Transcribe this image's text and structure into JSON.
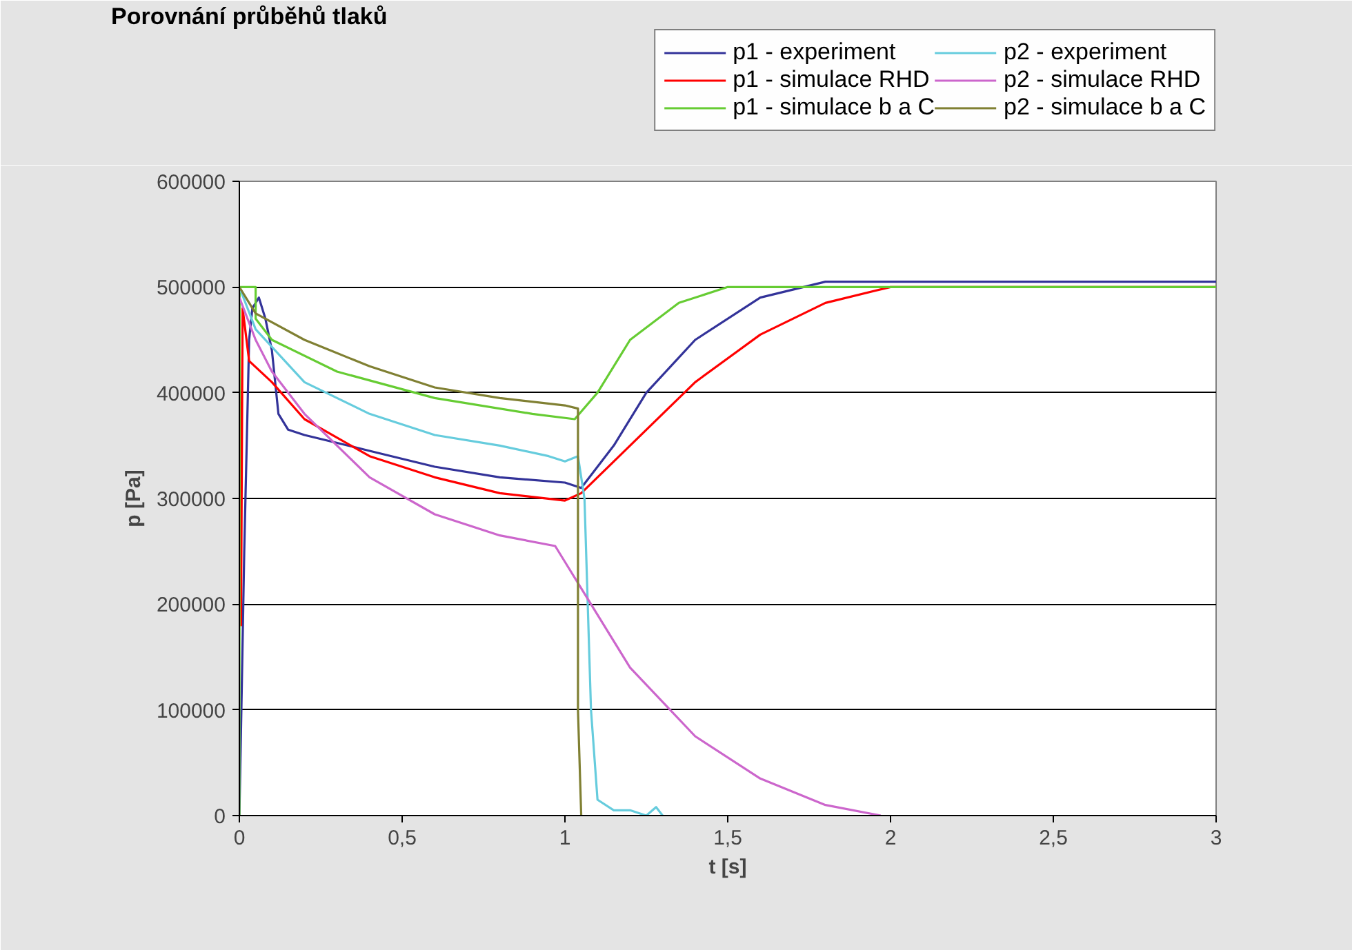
{
  "chart_data": {
    "type": "line",
    "title": "Porovnání průběhů tlaků",
    "xlabel": "t [s]",
    "ylabel": "p [Pa]",
    "xlim": [
      0,
      3
    ],
    "xticks": [
      0,
      {
        "value": 0.5,
        "label": "0,5"
      },
      1,
      {
        "value": 1.5,
        "label": "1,5"
      },
      2,
      {
        "value": 2.5,
        "label": "2,5"
      },
      3
    ],
    "ylim": [
      0,
      600000
    ],
    "yticks": [
      0,
      100000,
      200000,
      300000,
      400000,
      500000,
      600000
    ],
    "grid": "y",
    "legend": "top right",
    "marker": "none",
    "line_style": "solid",
    "series": [
      {
        "name": "p1 - experiment",
        "color": "#333399",
        "x": [
          0,
          0.005,
          0.015,
          0.03,
          0.04,
          0.06,
          0.08,
          0.1,
          0.12,
          0.15,
          0.2,
          0.4,
          0.6,
          0.8,
          1.0,
          1.05,
          1.15,
          1.25,
          1.4,
          1.6,
          1.8,
          2.2,
          3
        ],
        "values": [
          0,
          80000,
          250000,
          450000,
          480000,
          490000,
          470000,
          440000,
          380000,
          365000,
          360000,
          345000,
          330000,
          320000,
          315000,
          310000,
          350000,
          400000,
          450000,
          490000,
          505000,
          505000,
          505000
        ]
      },
      {
        "name": "p1 - simulace RHD",
        "color": "#ff0000",
        "x": [
          0,
          0.005,
          0.01,
          0.03,
          0.1,
          0.2,
          0.4,
          0.6,
          0.8,
          1.0,
          1.05,
          1.2,
          1.4,
          1.6,
          1.8,
          2.0,
          3
        ],
        "values": [
          500000,
          180000,
          480000,
          430000,
          410000,
          375000,
          340000,
          320000,
          305000,
          298000,
          305000,
          350000,
          410000,
          455000,
          485000,
          500000,
          500000
        ]
      },
      {
        "name": "p1 - simulace b a C",
        "color": "#66cc33",
        "x": [
          0,
          0.001,
          0.05,
          0.05,
          0.1,
          0.3,
          0.6,
          0.9,
          1.03,
          1.1,
          1.2,
          1.35,
          1.5,
          3
        ],
        "values": [
          0,
          500000,
          500000,
          470000,
          450000,
          420000,
          395000,
          380000,
          375000,
          400000,
          450000,
          485000,
          500000,
          500000
        ]
      },
      {
        "name": "p2 - experiment",
        "color": "#66ccdd",
        "x": [
          0,
          0.05,
          0.2,
          0.4,
          0.6,
          0.8,
          0.95,
          1.0,
          1.04,
          1.06,
          1.08,
          1.1,
          1.15,
          1.2,
          1.25,
          1.28,
          1.3
        ],
        "values": [
          500000,
          460000,
          410000,
          380000,
          360000,
          350000,
          340000,
          335000,
          340000,
          300000,
          100000,
          15000,
          5000,
          5000,
          0,
          8000,
          0
        ]
      },
      {
        "name": "p2 - simulace RHD",
        "color": "#cc66cc",
        "x": [
          0,
          0.05,
          0.1,
          0.2,
          0.4,
          0.6,
          0.8,
          0.97,
          1.0,
          1.05,
          1.2,
          1.4,
          1.6,
          1.8,
          1.97
        ],
        "values": [
          490000,
          450000,
          420000,
          380000,
          320000,
          285000,
          265000,
          255000,
          240000,
          215000,
          140000,
          75000,
          35000,
          10000,
          0
        ]
      },
      {
        "name": "p2 - simulace b a C",
        "color": "#808033",
        "x": [
          0,
          0.05,
          0.2,
          0.4,
          0.6,
          0.8,
          1.0,
          1.04,
          1.04,
          1.05
        ],
        "values": [
          500000,
          475000,
          450000,
          425000,
          405000,
          395000,
          388000,
          385000,
          100000,
          0
        ]
      }
    ]
  }
}
